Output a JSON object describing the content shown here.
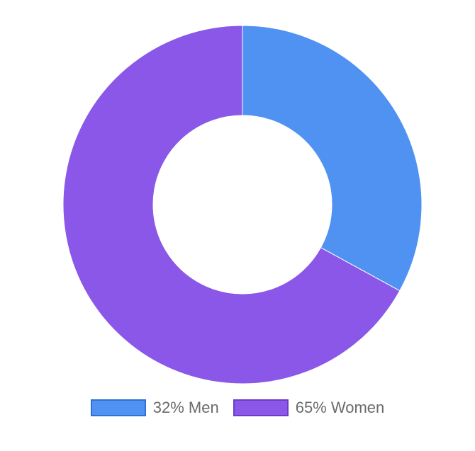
{
  "chart_data": {
    "type": "pie",
    "variant": "doughnut",
    "title": "",
    "slices": [
      {
        "label": "32% Men",
        "value": 32,
        "color": "#4f92f2",
        "border_color": "#2f6fd6"
      },
      {
        "label": "65% Women",
        "value": 65,
        "color": "#8a57e8",
        "border_color": "#6a3dc8"
      }
    ],
    "start_angle_deg": 0,
    "direction": "clockwise",
    "legend": "bottom"
  }
}
